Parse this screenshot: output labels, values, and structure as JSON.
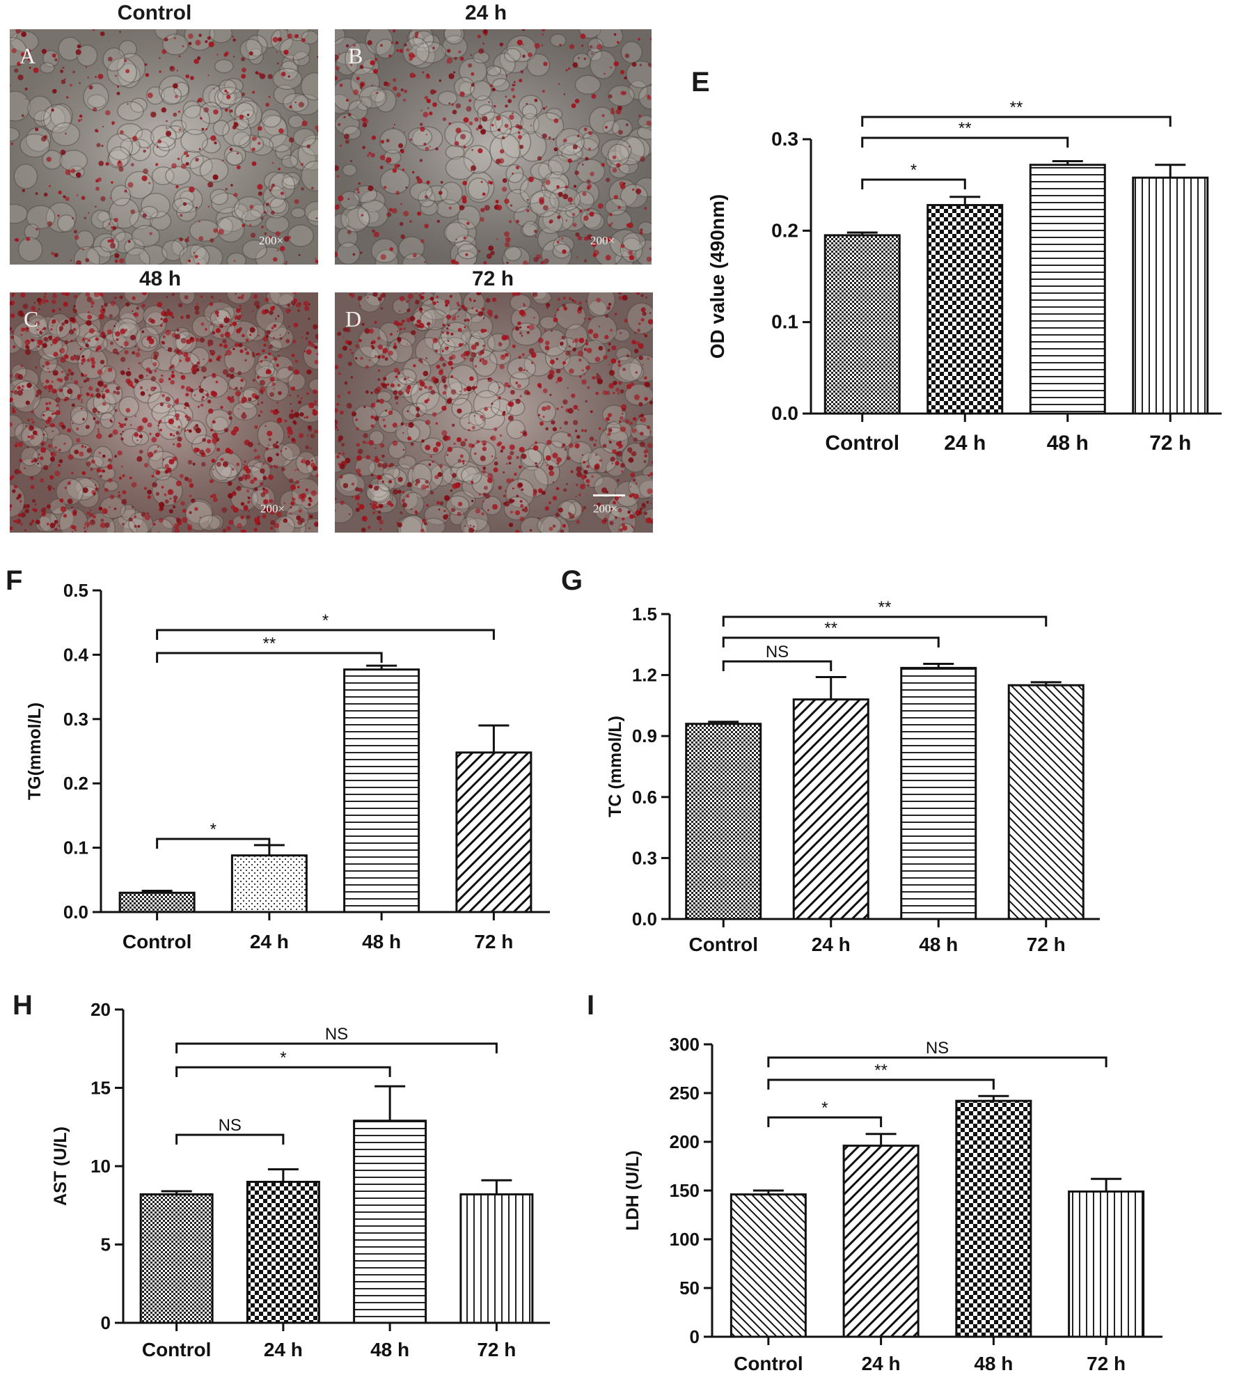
{
  "micrographs": [
    {
      "letter": "A",
      "title": "Control",
      "magnification": "200×"
    },
    {
      "letter": "B",
      "title": "24 h",
      "magnification": "200×"
    },
    {
      "letter": "C",
      "title": "48 h",
      "magnification": "200×"
    },
    {
      "letter": "D",
      "title": "72 h",
      "magnification": "200×"
    }
  ],
  "chart_data": [
    {
      "panel": "E",
      "type": "bar",
      "ylabel": "OD value (490nm)",
      "categories": [
        "Control",
        "24 h",
        "48 h",
        "72 h"
      ],
      "values": [
        0.195,
        0.228,
        0.272,
        0.258
      ],
      "errors": [
        0.003,
        0.009,
        0.004,
        0.014
      ],
      "ylim": [
        0,
        0.3
      ],
      "yticks": [
        "0.0",
        "0.1",
        "0.2",
        "0.3"
      ],
      "patterns": [
        "fine-check",
        "check",
        "hstripe",
        "vstripe"
      ],
      "significance": [
        {
          "from": 0,
          "to": 1,
          "label": "*"
        },
        {
          "from": 0,
          "to": 2,
          "label": "**"
        },
        {
          "from": 0,
          "to": 3,
          "label": "**"
        }
      ]
    },
    {
      "panel": "F",
      "type": "bar",
      "ylabel": "TG(mmol/L)",
      "categories": [
        "Control",
        "24 h",
        "48 h",
        "72 h"
      ],
      "values": [
        0.03,
        0.088,
        0.377,
        0.248
      ],
      "errors": [
        0.003,
        0.016,
        0.006,
        0.042
      ],
      "ylim": [
        0,
        0.5
      ],
      "yticks": [
        "0.0",
        "0.1",
        "0.2",
        "0.3",
        "0.4",
        "0.5"
      ],
      "patterns": [
        "fine-check",
        "dots",
        "hstripe",
        "diag"
      ],
      "significance": [
        {
          "from": 0,
          "to": 1,
          "label": "*"
        },
        {
          "from": 0,
          "to": 2,
          "label": "**"
        },
        {
          "from": 0,
          "to": 3,
          "label": "*"
        }
      ]
    },
    {
      "panel": "G",
      "type": "bar",
      "ylabel": "TC (mmol/L)",
      "categories": [
        "Control",
        "24 h",
        "48 h",
        "72 h"
      ],
      "values": [
        0.96,
        1.08,
        1.235,
        1.15
      ],
      "errors": [
        0.01,
        0.11,
        0.02,
        0.015
      ],
      "ylim": [
        0,
        1.5
      ],
      "yticks": [
        "0.0",
        "0.3",
        "0.6",
        "0.9",
        "1.2",
        "1.5"
      ],
      "patterns": [
        "fine-check",
        "diag",
        "hstripe",
        "diag-rev"
      ],
      "significance": [
        {
          "from": 0,
          "to": 1,
          "label": "NS"
        },
        {
          "from": 0,
          "to": 2,
          "label": "**"
        },
        {
          "from": 0,
          "to": 3,
          "label": "**"
        }
      ]
    },
    {
      "panel": "H",
      "type": "bar",
      "ylabel": "AST (U/L)",
      "categories": [
        "Control",
        "24 h",
        "48 h",
        "72 h"
      ],
      "values": [
        8.2,
        9.0,
        12.9,
        8.2
      ],
      "errors": [
        0.2,
        0.8,
        2.2,
        0.9
      ],
      "ylim": [
        0,
        20
      ],
      "yticks": [
        "0",
        "5",
        "10",
        "15",
        "20"
      ],
      "patterns": [
        "fine-check",
        "check",
        "hstripe",
        "vstripe"
      ],
      "significance": [
        {
          "from": 0,
          "to": 1,
          "label": "NS"
        },
        {
          "from": 0,
          "to": 2,
          "label": "*"
        },
        {
          "from": 0,
          "to": 3,
          "label": "NS"
        }
      ]
    },
    {
      "panel": "I",
      "type": "bar",
      "ylabel": "LDH (U/L)",
      "categories": [
        "Control",
        "24 h",
        "48 h",
        "72 h"
      ],
      "values": [
        146,
        196,
        242,
        149
      ],
      "errors": [
        4,
        12,
        5,
        13
      ],
      "ylim": [
        0,
        300
      ],
      "yticks": [
        "0",
        "50",
        "100",
        "150",
        "200",
        "250",
        "300"
      ],
      "patterns": [
        "diag-rev",
        "diag",
        "check",
        "vstripe"
      ],
      "significance": [
        {
          "from": 0,
          "to": 1,
          "label": "*"
        },
        {
          "from": 0,
          "to": 2,
          "label": "**"
        },
        {
          "from": 0,
          "to": 3,
          "label": "NS"
        }
      ]
    }
  ]
}
